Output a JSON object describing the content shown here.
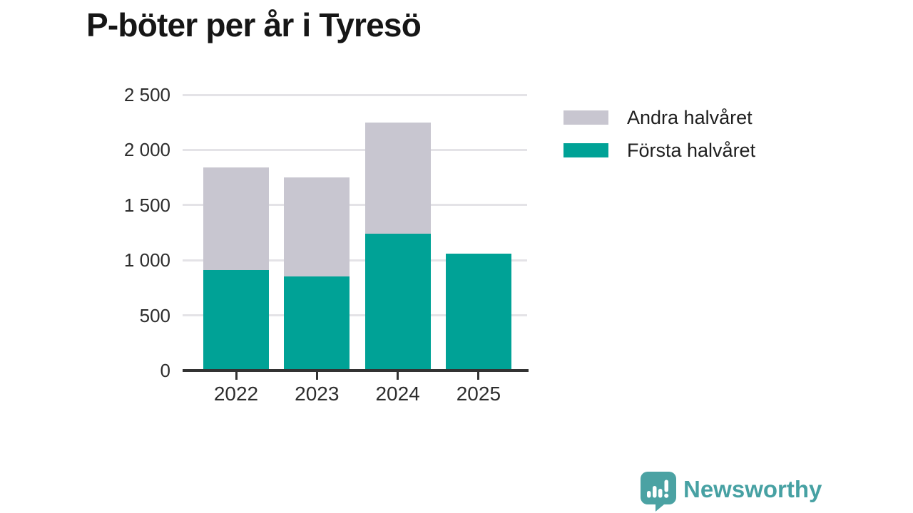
{
  "title": "P-böter per år i Tyresö",
  "legend": [
    {
      "label": "Andra halvåret",
      "color": "#c8c6d0"
    },
    {
      "label": "Första halvåret",
      "color": "#00a296"
    }
  ],
  "chart_data": {
    "type": "bar",
    "stacked": true,
    "title": "P-böter per år i Tyresö",
    "categories": [
      "2022",
      "2023",
      "2024",
      "2025"
    ],
    "series": [
      {
        "name": "Första halvåret",
        "color": "#00a296",
        "values": [
          910,
          850,
          1240,
          1060
        ]
      },
      {
        "name": "Andra halvåret",
        "color": "#c8c6d0",
        "values": [
          930,
          900,
          1010,
          0
        ]
      }
    ],
    "totals": [
      1840,
      1750,
      2250,
      1060
    ],
    "xlabel": "",
    "ylabel": "",
    "ylim": [
      0,
      2500
    ],
    "yticks": [
      0,
      500,
      1000,
      1500,
      2000,
      2500
    ],
    "ytick_labels": [
      "0",
      "500",
      "1 000",
      "1 500",
      "2 000",
      "2 500"
    ],
    "grid": true,
    "legend_position": "right"
  },
  "branding": {
    "logo_text": "Newsworthy",
    "logo_color": "#47a1a3",
    "logo_icon": "bar-chart-speech-bubble-icon"
  },
  "colors": {
    "background": "#ffffff",
    "axis": "#333333",
    "gridline": "#e4e3e7",
    "tick_text": "#2d2d2d",
    "title_text": "#161616"
  }
}
